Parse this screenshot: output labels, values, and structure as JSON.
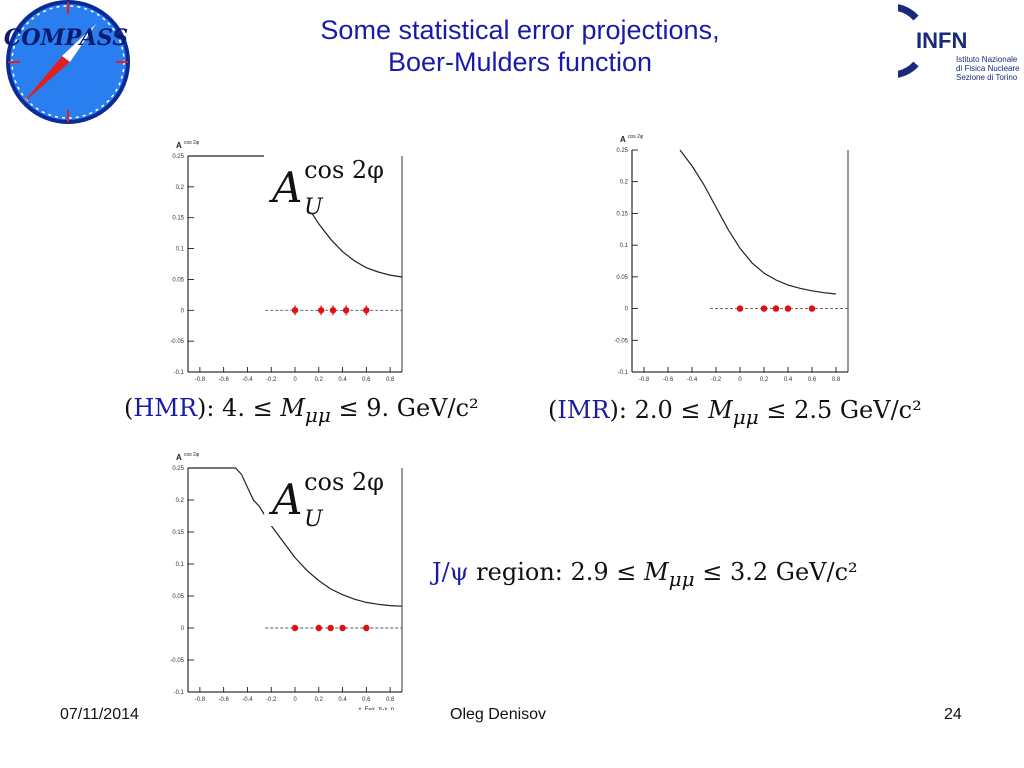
{
  "title_line1": "Some statistical error projections,",
  "title_line2": "Boer-Mulders function",
  "logos": {
    "left": "COMPASS",
    "right_name": "INFN",
    "right_sub": [
      "Istituto Nazionale",
      "di Fisica Nucleare",
      "Sezione di Torino"
    ]
  },
  "labels": {
    "hmr": {
      "tag": "HMR",
      "text": ": 4. ≤ ",
      "m": "M",
      "sub": "μμ",
      "tail": " ≤ 9. GeV/c²"
    },
    "imr": {
      "tag": "IMR",
      "text": ": 2.0 ≤ ",
      "m": "M",
      "sub": "μμ",
      "tail": " ≤ 2.5 GeV/c²"
    },
    "jpsi": {
      "tag": "J/ψ",
      "text": " region: 2.9 ≤ ",
      "m": "M",
      "sub": "μμ",
      "tail": " ≤ 3.2 GeV/c²"
    }
  },
  "asym_label": {
    "base": "A",
    "sup": "cos 2φ",
    "sub": "U"
  },
  "small_axis_title": "A",
  "small_axis_sup": "cos 2φ",
  "footer": {
    "date": "07/11/2014",
    "author": "Oleg Denisov",
    "page": "24"
  },
  "colors": {
    "title": "#1a1aa8",
    "points": "#e01010",
    "curve": "#222222"
  },
  "chart_data": [
    {
      "type": "line",
      "region": "HMR",
      "ylabel": "A_U^cos2φ",
      "xlim": [
        -0.9,
        0.9
      ],
      "ylim": [
        -0.1,
        0.25
      ],
      "y_ticks": [
        "0.25",
        "0.2",
        "0.15",
        "0.1",
        "0.05",
        "0",
        "-0.05",
        "-0.1"
      ],
      "x_ticks": [
        "-0.8",
        "-0.6",
        "-0.4",
        "-0.2",
        "0",
        "0.2",
        "0.4",
        "0.6",
        "0.8"
      ],
      "curve": {
        "x": [
          -0.9,
          -0.45,
          -0.1,
          0.0,
          0.1,
          0.2,
          0.3,
          0.4,
          0.5,
          0.6,
          0.7,
          0.8,
          0.9
        ],
        "y": [
          0.25,
          0.25,
          0.25,
          0.21,
          0.17,
          0.14,
          0.115,
          0.095,
          0.08,
          0.069,
          0.062,
          0.057,
          0.054
        ]
      },
      "points": {
        "x": [
          0.0,
          0.22,
          0.32,
          0.43,
          0.6
        ],
        "y": [
          0,
          0,
          0,
          0,
          0
        ],
        "err": [
          0.008,
          0.008,
          0.008,
          0.008,
          0.008
        ]
      }
    },
    {
      "type": "line",
      "region": "IMR",
      "ylabel": "A_U^cos2φ",
      "xlim": [
        -0.9,
        0.9
      ],
      "ylim": [
        -0.1,
        0.25
      ],
      "y_ticks": [
        "0.25",
        "0.2",
        "0.15",
        "0.1",
        "0.05",
        "0",
        "-0.05",
        "-0.1"
      ],
      "x_ticks": [
        "-0.8",
        "-0.6",
        "-0.4",
        "-0.2",
        "0",
        "0.2",
        "0.4",
        "0.6",
        "0.8"
      ],
      "curve": {
        "x": [
          -0.5,
          -0.4,
          -0.3,
          -0.2,
          -0.1,
          0.0,
          0.1,
          0.2,
          0.3,
          0.4,
          0.5,
          0.6,
          0.7,
          0.8
        ],
        "y": [
          0.25,
          0.225,
          0.195,
          0.16,
          0.125,
          0.095,
          0.072,
          0.056,
          0.045,
          0.037,
          0.032,
          0.028,
          0.025,
          0.023
        ]
      },
      "points": {
        "x": [
          0.0,
          0.2,
          0.3,
          0.4,
          0.6
        ],
        "y": [
          0,
          0,
          0,
          0,
          0
        ],
        "err": [
          0.003,
          0.003,
          0.003,
          0.003,
          0.003
        ]
      }
    },
    {
      "type": "line",
      "region": "J/psi",
      "ylabel": "A_U^cos2φ",
      "xlabel": "x_F=x_π-x_p",
      "xlim": [
        -0.9,
        0.9
      ],
      "ylim": [
        -0.1,
        0.25
      ],
      "y_ticks": [
        "0.25",
        "0.2",
        "0.15",
        "0.1",
        "0.05",
        "0",
        "-0.05",
        "-0.1"
      ],
      "x_ticks": [
        "-0.8",
        "-0.6",
        "-0.4",
        "-0.2",
        "0",
        "0.2",
        "0.4",
        "0.6",
        "0.8"
      ],
      "curve": {
        "x": [
          -0.9,
          -0.5,
          -0.45,
          -0.4,
          -0.35,
          -0.3,
          -0.2,
          -0.1,
          0.0,
          0.1,
          0.2,
          0.3,
          0.4,
          0.5,
          0.6,
          0.7,
          0.8,
          0.9
        ],
        "y": [
          0.25,
          0.25,
          0.24,
          0.22,
          0.2,
          0.19,
          0.16,
          0.135,
          0.11,
          0.09,
          0.074,
          0.061,
          0.052,
          0.045,
          0.04,
          0.037,
          0.035,
          0.034
        ]
      },
      "points": {
        "x": [
          0.0,
          0.2,
          0.3,
          0.4,
          0.6
        ],
        "y": [
          0,
          0,
          0,
          0,
          0
        ],
        "err": [
          0.002,
          0.002,
          0.002,
          0.002,
          0.002
        ]
      }
    }
  ]
}
